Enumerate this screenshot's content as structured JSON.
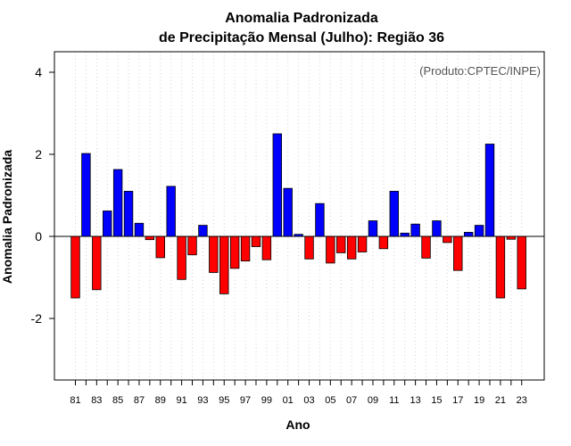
{
  "chart_data": {
    "type": "bar",
    "title": [
      "Anomalia Padronizada",
      "de Precipitação Mensal (Julho): Região 36"
    ],
    "xlabel": "Ano",
    "ylabel": "Anomalia Padronizada",
    "credit": "(Produto:CPTEC/INPE)",
    "ylim": [
      -3.5,
      4.5
    ],
    "yticks": [
      -2,
      0,
      2,
      4
    ],
    "ytick_labels": [
      "-2",
      "0",
      "2",
      "4"
    ],
    "grid": true,
    "colors": {
      "positive": "#0000ff",
      "negative": "#ff0000",
      "frame": "#000000",
      "grid": "#d3d3d3"
    },
    "years": [
      1981,
      1982,
      1983,
      1984,
      1985,
      1986,
      1987,
      1988,
      1989,
      1990,
      1991,
      1992,
      1993,
      1994,
      1995,
      1996,
      1997,
      1998,
      1999,
      2000,
      2001,
      2002,
      2003,
      2004,
      2005,
      2006,
      2007,
      2008,
      2009,
      2010,
      2011,
      2012,
      2013,
      2014,
      2015,
      2016,
      2017,
      2018,
      2019,
      2020,
      2021,
      2022,
      2023
    ],
    "categories": [
      "81",
      "82",
      "83",
      "84",
      "85",
      "86",
      "87",
      "88",
      "89",
      "90",
      "91",
      "92",
      "93",
      "94",
      "95",
      "96",
      "97",
      "98",
      "99",
      "00",
      "01",
      "02",
      "03",
      "04",
      "05",
      "06",
      "07",
      "08",
      "09",
      "10",
      "11",
      "12",
      "13",
      "14",
      "15",
      "16",
      "17",
      "18",
      "19",
      "20",
      "21",
      "22",
      "23"
    ],
    "tick_labels_shown": [
      "81",
      "83",
      "85",
      "87",
      "89",
      "91",
      "93",
      "95",
      "97",
      "99",
      "01",
      "03",
      "05",
      "07",
      "09",
      "11",
      "13",
      "15",
      "17",
      "19",
      "21",
      "23"
    ],
    "values": [
      -1.5,
      2.02,
      -1.3,
      0.62,
      1.63,
      1.1,
      0.32,
      -0.08,
      -0.52,
      1.22,
      -1.05,
      -0.45,
      0.27,
      -0.88,
      -1.4,
      -0.78,
      -0.6,
      -0.25,
      -0.57,
      2.5,
      1.17,
      0.05,
      -0.55,
      0.8,
      -0.65,
      -0.4,
      -0.55,
      -0.38,
      0.38,
      -0.3,
      1.1,
      0.08,
      0.3,
      -0.53,
      0.38,
      -0.15,
      -0.83,
      0.1,
      0.27,
      2.25,
      -1.5,
      -0.07,
      -1.28
    ]
  }
}
